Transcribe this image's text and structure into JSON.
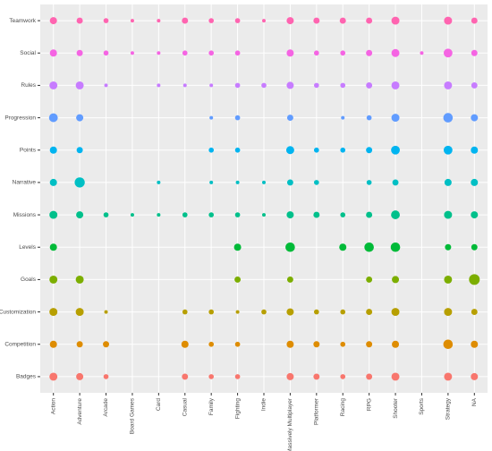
{
  "chart_data": {
    "type": "bubble",
    "categories": [
      "Action",
      "Adventure",
      "Arcade",
      "Board Games",
      "Card",
      "Casual",
      "Family",
      "Fighting",
      "Indie",
      "Massively Multiplayer",
      "Platformer",
      "Racing",
      "RPG",
      "Shooter",
      "Sports",
      "Strategy",
      "NA"
    ],
    "series": [
      {
        "name": "Teamwork",
        "color": "#FF64B0",
        "values": [
          4,
          3,
          2,
          1,
          1,
          3,
          2,
          2,
          1,
          4,
          3,
          3,
          3,
          5,
          null,
          5,
          3
        ]
      },
      {
        "name": "Social",
        "color": "#F564E3",
        "values": [
          4,
          3,
          2,
          1,
          1,
          2,
          2,
          2,
          null,
          4,
          2,
          2,
          3,
          5,
          1,
          6,
          3
        ]
      },
      {
        "name": "Rules",
        "color": "#C77CFF",
        "values": [
          5,
          5,
          1,
          null,
          1,
          1,
          1,
          2,
          2,
          4,
          2,
          2,
          3,
          5,
          null,
          5,
          3
        ]
      },
      {
        "name": "Progression",
        "color": "#619CFF",
        "values": [
          6,
          4,
          null,
          null,
          null,
          null,
          1,
          2,
          null,
          3,
          null,
          1,
          2,
          5,
          null,
          7,
          4
        ]
      },
      {
        "name": "Points",
        "color": "#00B4F0",
        "values": [
          4,
          3,
          null,
          null,
          null,
          null,
          2,
          2,
          null,
          5,
          2,
          2,
          3,
          6,
          null,
          6,
          4
        ]
      },
      {
        "name": "Narrative",
        "color": "#00BFC4",
        "values": [
          4,
          8,
          null,
          null,
          1,
          null,
          1,
          1,
          1,
          3,
          2,
          null,
          2,
          3,
          null,
          4,
          4
        ]
      },
      {
        "name": "Missions",
        "color": "#00C08B",
        "values": [
          5,
          4,
          2,
          1,
          1,
          2,
          2,
          2,
          1,
          4,
          3,
          2,
          3,
          6,
          null,
          5,
          4
        ]
      },
      {
        "name": "Levels",
        "color": "#00BA38",
        "values": [
          4,
          null,
          null,
          null,
          null,
          null,
          null,
          4,
          null,
          7,
          null,
          4,
          7,
          7,
          null,
          3,
          3
        ]
      },
      {
        "name": "Goals",
        "color": "#7CAE00",
        "values": [
          5,
          5,
          null,
          null,
          null,
          null,
          null,
          3,
          null,
          3,
          null,
          null,
          3,
          4,
          null,
          5,
          9
        ]
      },
      {
        "name": "Customization",
        "color": "#B79F00",
        "values": [
          5,
          5,
          1,
          null,
          null,
          2,
          2,
          1,
          2,
          4,
          2,
          2,
          3,
          5,
          null,
          5,
          3
        ]
      },
      {
        "name": "Competition",
        "color": "#DE8C00",
        "values": [
          4,
          3,
          3,
          null,
          null,
          4,
          2,
          2,
          null,
          4,
          3,
          2,
          3,
          4,
          null,
          7,
          4
        ]
      },
      {
        "name": "Badges",
        "color": "#F8766D",
        "values": [
          5,
          4,
          2,
          null,
          null,
          3,
          2,
          2,
          null,
          4,
          3,
          2,
          3,
          5,
          null,
          5,
          4
        ]
      }
    ],
    "grid": true
  }
}
